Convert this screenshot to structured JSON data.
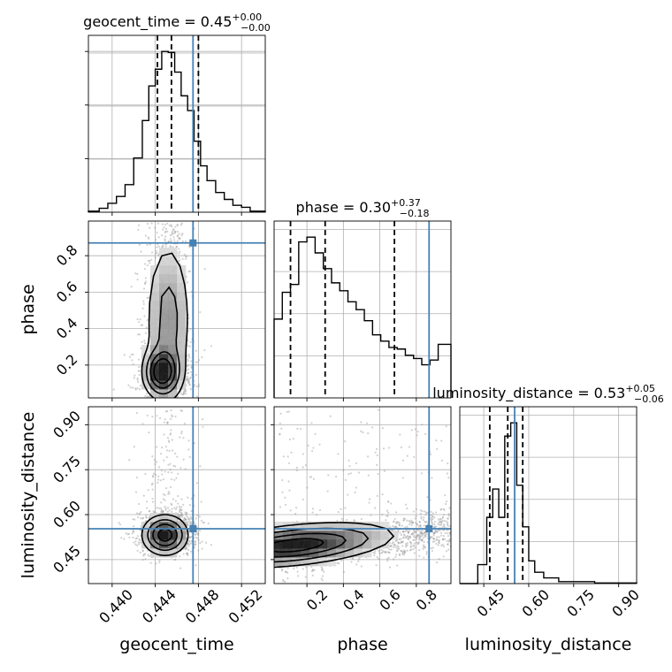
{
  "chart_data": {
    "type": "corner",
    "parameters": [
      "geocent_time",
      "phase",
      "luminosity_distance"
    ],
    "truths": {
      "geocent_time": 0.4475,
      "phase": 0.87,
      "luminosity_distance": 0.553
    },
    "truth_color": "#4682b4",
    "grid": true,
    "ranges": {
      "geocent_time": [
        0.4378,
        0.4542
      ],
      "phase": [
        0.02,
        0.99
      ],
      "luminosity_distance": [
        0.37,
        0.96
      ]
    },
    "ticks": {
      "geocent_time": [
        0.44,
        0.444,
        0.448,
        0.452
      ],
      "phase": [
        0.2,
        0.4,
        0.6,
        0.8
      ],
      "luminosity_distance": [
        0.45,
        0.6,
        0.75,
        0.9
      ]
    },
    "tick_labels": {
      "geocent_time": [
        "0.440",
        "0.444",
        "0.448",
        "0.452"
      ],
      "phase": [
        "0.2",
        "0.4",
        "0.6",
        "0.8"
      ],
      "luminosity_distance": [
        "0.45",
        "0.60",
        "0.75",
        "0.90"
      ]
    },
    "axis_labels": {
      "geocent_time": "geocent_time",
      "phase": "phase",
      "luminosity_distance": "luminosity_distance"
    },
    "titles": [
      {
        "prefix": "geocent_time = 0.45",
        "plus": "+0.00",
        "minus": "−0.00"
      },
      {
        "prefix": "phase = 0.30",
        "plus": "+0.37",
        "minus": "−0.18"
      },
      {
        "prefix": "luminosity_distance = 0.53",
        "plus": "+0.05",
        "minus": "−0.06"
      }
    ],
    "quantiles": {
      "geocent_time": [
        0.4442,
        0.4455,
        0.448
      ],
      "phase": [
        0.11,
        0.3,
        0.68
      ],
      "luminosity_distance": [
        0.47,
        0.53,
        0.58
      ]
    },
    "histograms": {
      "geocent_time": {
        "edges": [
          0.4378,
          0.4388,
          0.4396,
          0.4404,
          0.4412,
          0.442,
          0.4428,
          0.4434,
          0.444,
          0.4446,
          0.4452,
          0.4458,
          0.4464,
          0.447,
          0.4476,
          0.4482,
          0.4488,
          0.4496,
          0.4504,
          0.4512,
          0.452,
          0.4528,
          0.4542
        ],
        "counts": [
          1,
          4,
          9,
          16,
          28,
          55,
          93,
          128,
          145,
          163,
          162,
          142,
          118,
          103,
          72,
          47,
          32,
          20,
          13,
          7,
          5,
          1
        ]
      },
      "phase": {
        "edges": [
          0.02,
          0.065,
          0.11,
          0.155,
          0.2,
          0.245,
          0.29,
          0.335,
          0.38,
          0.425,
          0.47,
          0.515,
          0.56,
          0.605,
          0.65,
          0.695,
          0.74,
          0.785,
          0.83,
          0.875,
          0.92,
          0.99
        ],
        "counts": [
          50,
          67,
          72,
          99,
          102,
          92,
          82,
          73,
          68,
          61,
          56,
          49,
          40,
          36,
          32,
          31,
          27,
          25,
          21,
          24,
          34
        ]
      },
      "luminosity_distance": {
        "edges": [
          0.37,
          0.43,
          0.46,
          0.48,
          0.5,
          0.52,
          0.54,
          0.56,
          0.58,
          0.6,
          0.62,
          0.65,
          0.7,
          0.75,
          0.82,
          0.96
        ],
        "counts": [
          0,
          10,
          35,
          50,
          35,
          78,
          85,
          52,
          30,
          12,
          6,
          3,
          1,
          1,
          0.3
        ]
      }
    },
    "densities_2d": [
      {
        "x": "geocent_time",
        "y": "phase",
        "peak": [
          0.4446,
          0.17
        ],
        "x_spread": 0.001,
        "low_tail_y": 0.35,
        "high_tail_y": 0.93
      },
      {
        "x": "geocent_time",
        "y": "luminosity_distance",
        "peak": [
          0.445,
          0.53
        ],
        "x_spread": 0.0012,
        "y_spread": 0.04
      },
      {
        "x": "phase",
        "y": "luminosity_distance",
        "peak": [
          0.12,
          0.49
        ],
        "trend": "luminosity_distance rises with phase"
      }
    ]
  }
}
